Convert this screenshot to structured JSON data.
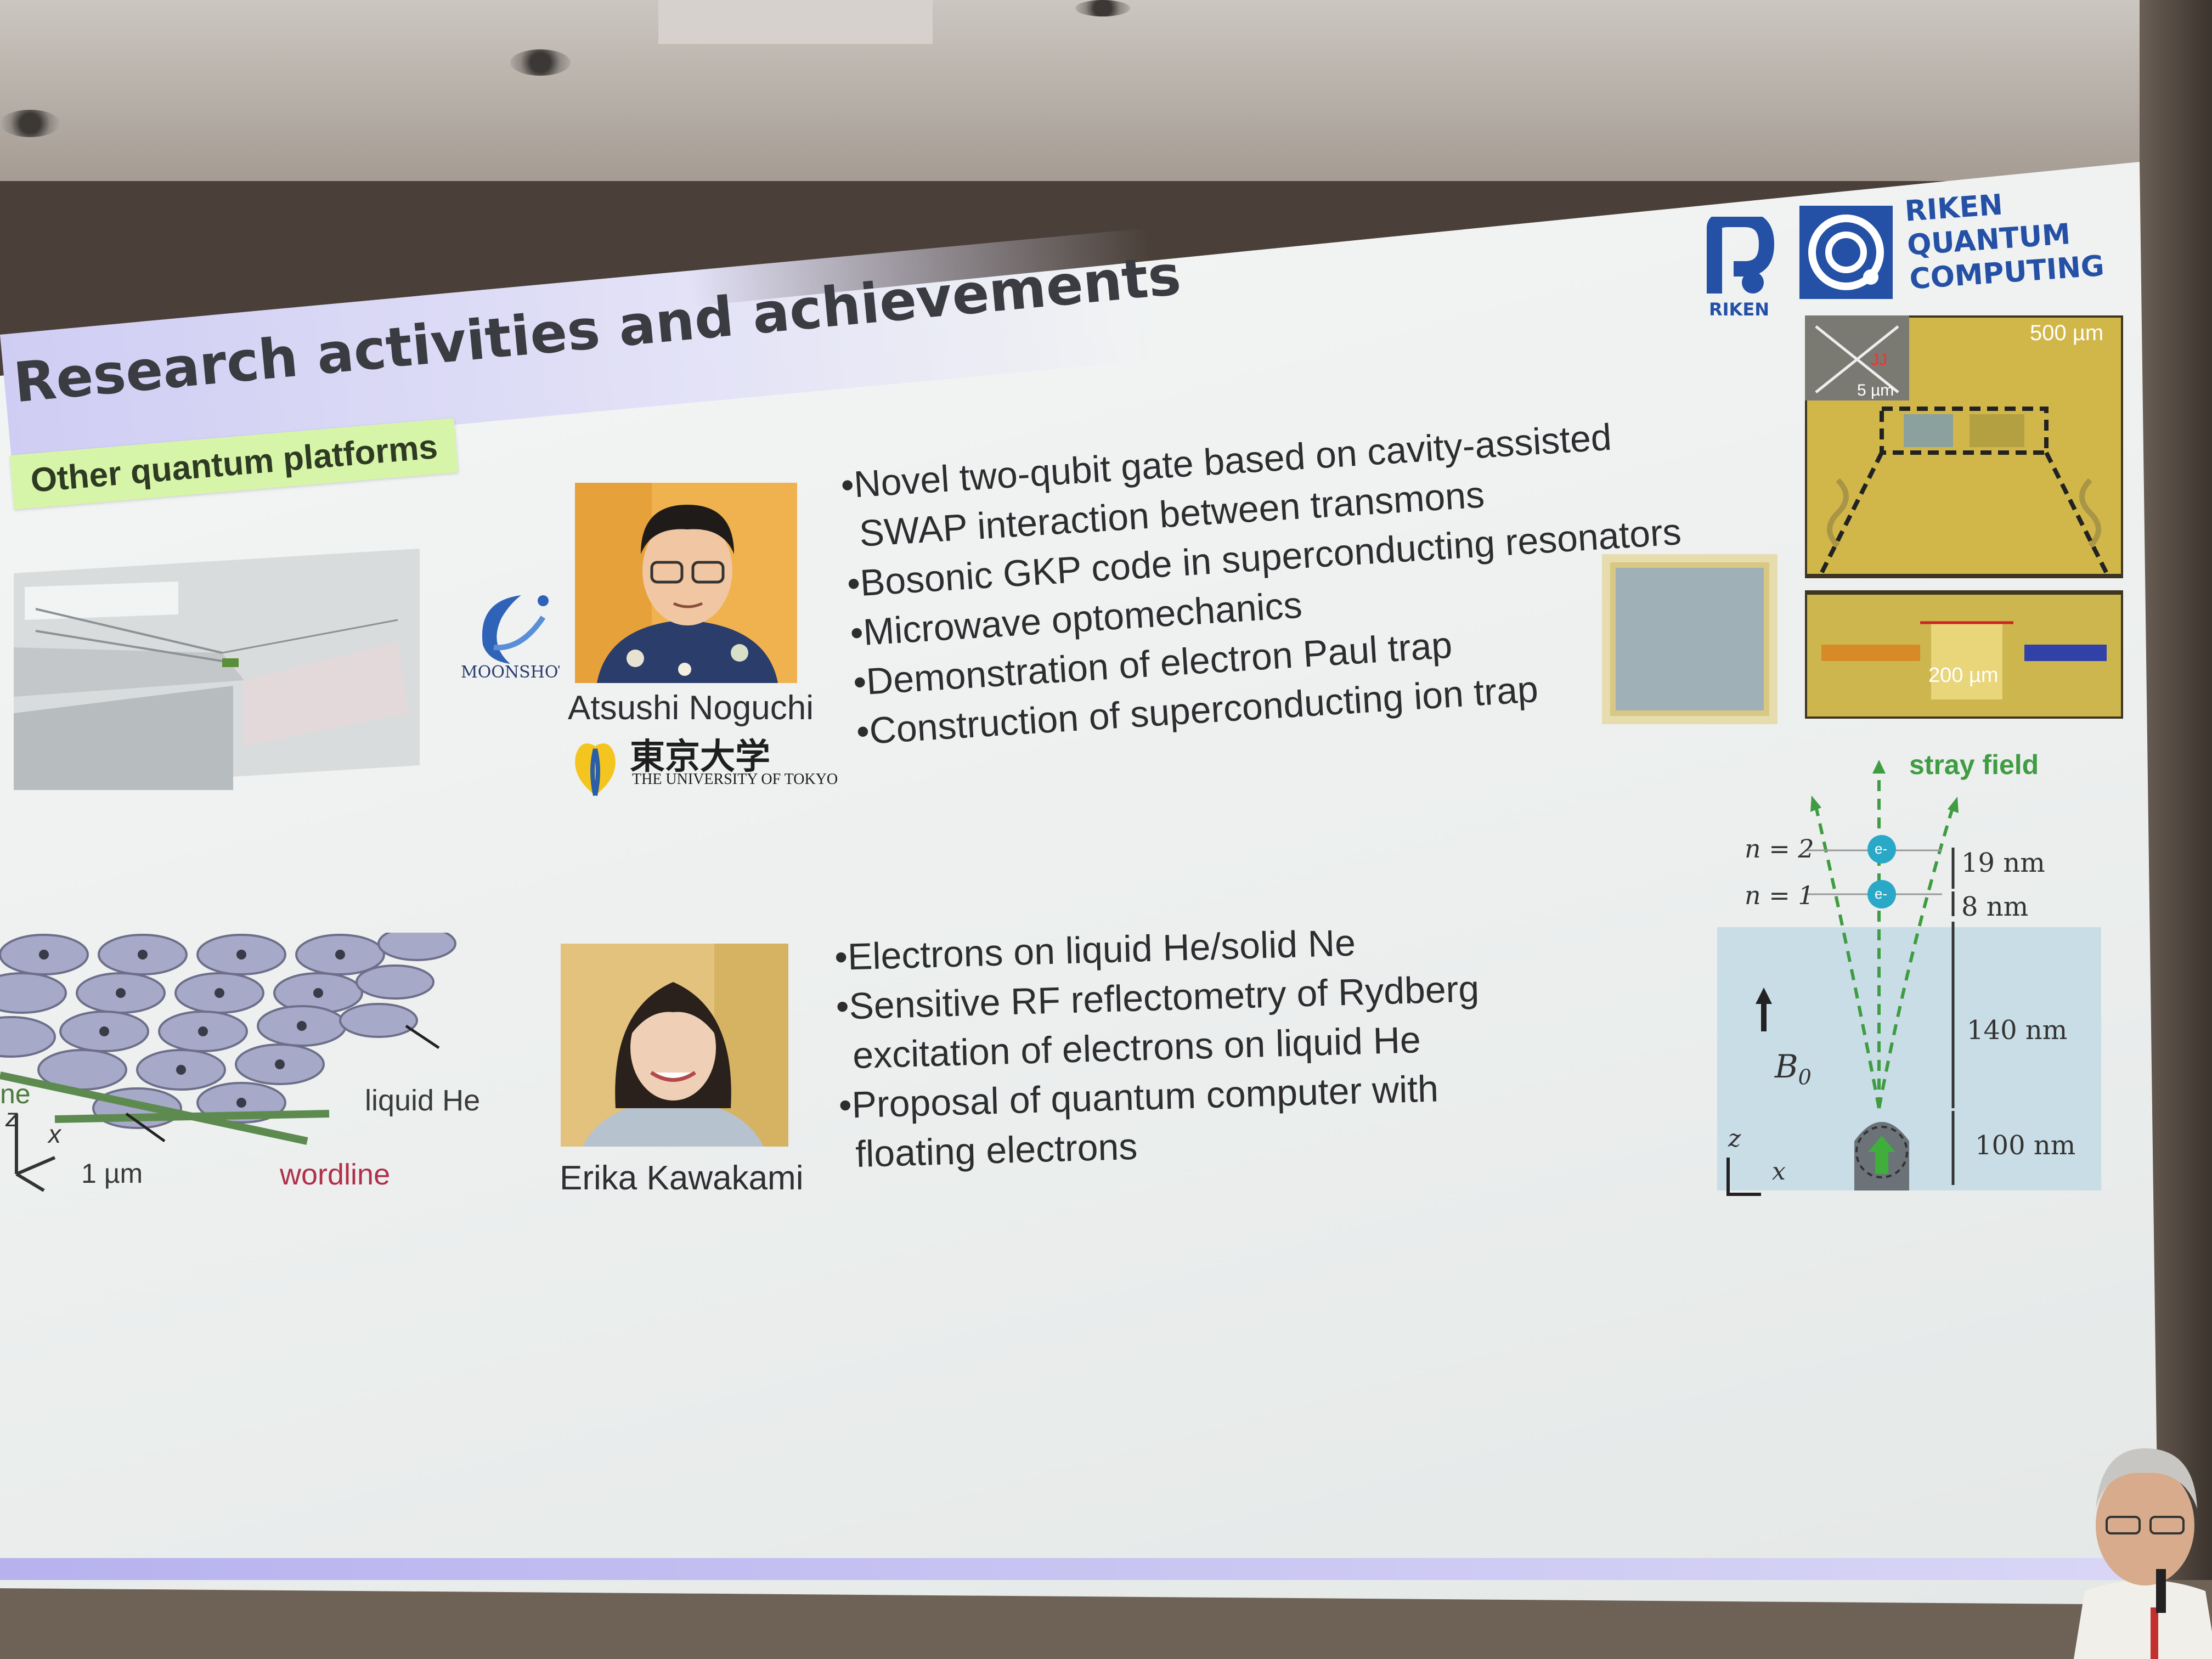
{
  "slide": {
    "title": "Research activities and achievements",
    "section_tag": "Other quantum platforms",
    "logos": {
      "riken_small": "RIKEN",
      "riken_quantum_lines": [
        "RIKEN",
        "QUANTUM",
        "COMPUTING"
      ],
      "moonshot": "MOONSHOT",
      "utokyo_kanji": "東京大学",
      "utokyo_en": "THE UNIVERSITY OF TOKYO"
    },
    "researchers": [
      {
        "name": "Atsushi Noguchi",
        "bullets": [
          "•Novel two-qubit gate based on cavity-assisted",
          " SWAP interaction between transmons",
          "•Bosonic GKP code in superconducting resonators",
          "•Microwave optomechanics",
          "•Demonstration of electron Paul trap",
          "•Construction of superconducting ion trap"
        ]
      },
      {
        "name": "Erika Kawakami",
        "bullets": [
          "•Electrons on liquid He/solid Ne",
          "•Sensitive RF reflectometry of Rydberg",
          " excitation of electrons on liquid He",
          "•Proposal of quantum computer with",
          " floating electrons"
        ]
      }
    ],
    "chip_figure": {
      "scale_top": "500 µm",
      "scale_inset": "5 µm",
      "inset_label": "JJ",
      "scale_bottom": "200 µm"
    },
    "lattice_figure": {
      "labels": [
        "liquid He",
        "wordline",
        "1 µm",
        "ne",
        "z",
        "x"
      ]
    },
    "electron_figure": {
      "stray": "stray field",
      "n2": "n = 2",
      "n1": "n = 1",
      "d19": "19 nm",
      "d8": "8 nm",
      "d140": "140 nm",
      "d100": "100 nm",
      "field": "B",
      "field_sub": "0",
      "axis_z": "z",
      "axis_x": "x",
      "electron": "e-"
    }
  }
}
